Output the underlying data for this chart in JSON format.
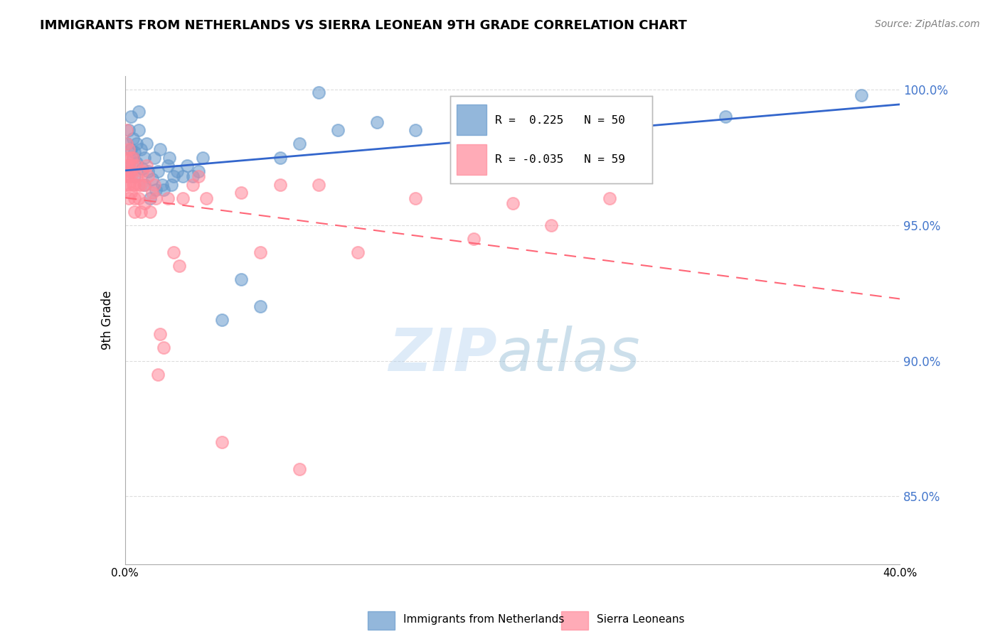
{
  "title": "IMMIGRANTS FROM NETHERLANDS VS SIERRA LEONEAN 9TH GRADE CORRELATION CHART",
  "source": "Source: ZipAtlas.com",
  "xlabel": "",
  "ylabel": "9th Grade",
  "x_min": 0.0,
  "x_max": 0.4,
  "y_min": 0.825,
  "y_max": 1.005,
  "y_ticks": [
    0.85,
    0.9,
    0.95,
    1.0
  ],
  "y_tick_labels": [
    "85.0%",
    "90.0%",
    "95.0%",
    "100.0%"
  ],
  "x_ticks": [
    0.0,
    0.05,
    0.1,
    0.15,
    0.2,
    0.25,
    0.3,
    0.35,
    0.4
  ],
  "x_tick_labels": [
    "0.0%",
    "",
    "",
    "",
    "",
    "",
    "",
    "",
    "40.0%"
  ],
  "blue_R": 0.225,
  "blue_N": 50,
  "pink_R": -0.035,
  "pink_N": 59,
  "blue_color": "#6699CC",
  "pink_color": "#FF8899",
  "blue_label": "Immigrants from Netherlands",
  "pink_label": "Sierra Leoneans",
  "watermark_zip": "ZIP",
  "watermark_atlas": "atlas",
  "blue_scatter_x": [
    0.001,
    0.002,
    0.002,
    0.003,
    0.003,
    0.004,
    0.004,
    0.005,
    0.005,
    0.006,
    0.006,
    0.007,
    0.007,
    0.008,
    0.009,
    0.01,
    0.01,
    0.011,
    0.012,
    0.013,
    0.014,
    0.015,
    0.016,
    0.017,
    0.018,
    0.019,
    0.02,
    0.022,
    0.023,
    0.024,
    0.025,
    0.027,
    0.03,
    0.032,
    0.035,
    0.038,
    0.04,
    0.05,
    0.06,
    0.07,
    0.08,
    0.09,
    0.1,
    0.11,
    0.13,
    0.15,
    0.18,
    0.22,
    0.31,
    0.38
  ],
  "blue_scatter_y": [
    0.98,
    0.972,
    0.985,
    0.978,
    0.99,
    0.975,
    0.982,
    0.968,
    0.977,
    0.973,
    0.98,
    0.985,
    0.992,
    0.978,
    0.971,
    0.965,
    0.975,
    0.98,
    0.97,
    0.96,
    0.967,
    0.975,
    0.963,
    0.97,
    0.978,
    0.965,
    0.963,
    0.972,
    0.975,
    0.965,
    0.968,
    0.97,
    0.968,
    0.972,
    0.968,
    0.97,
    0.975,
    0.915,
    0.93,
    0.92,
    0.975,
    0.98,
    0.999,
    0.985,
    0.988,
    0.985,
    0.99,
    0.985,
    0.99,
    0.998
  ],
  "pink_scatter_x": [
    0.0,
    0.0,
    0.001,
    0.001,
    0.001,
    0.001,
    0.001,
    0.002,
    0.002,
    0.002,
    0.002,
    0.002,
    0.003,
    0.003,
    0.003,
    0.003,
    0.004,
    0.004,
    0.004,
    0.005,
    0.005,
    0.005,
    0.006,
    0.006,
    0.007,
    0.007,
    0.008,
    0.008,
    0.009,
    0.01,
    0.01,
    0.011,
    0.012,
    0.013,
    0.014,
    0.015,
    0.016,
    0.017,
    0.018,
    0.02,
    0.022,
    0.025,
    0.028,
    0.03,
    0.035,
    0.038,
    0.042,
    0.05,
    0.06,
    0.07,
    0.08,
    0.09,
    0.1,
    0.12,
    0.15,
    0.18,
    0.2,
    0.22,
    0.25
  ],
  "pink_scatter_y": [
    0.97,
    0.965,
    0.98,
    0.975,
    0.968,
    0.972,
    0.985,
    0.978,
    0.96,
    0.965,
    0.972,
    0.968,
    0.975,
    0.968,
    0.962,
    0.97,
    0.965,
    0.975,
    0.972,
    0.96,
    0.955,
    0.965,
    0.968,
    0.972,
    0.96,
    0.965,
    0.955,
    0.965,
    0.97,
    0.958,
    0.965,
    0.972,
    0.968,
    0.955,
    0.962,
    0.965,
    0.96,
    0.895,
    0.91,
    0.905,
    0.96,
    0.94,
    0.935,
    0.96,
    0.965,
    0.968,
    0.96,
    0.87,
    0.962,
    0.94,
    0.965,
    0.86,
    0.965,
    0.94,
    0.96,
    0.945,
    0.958,
    0.95,
    0.96
  ]
}
